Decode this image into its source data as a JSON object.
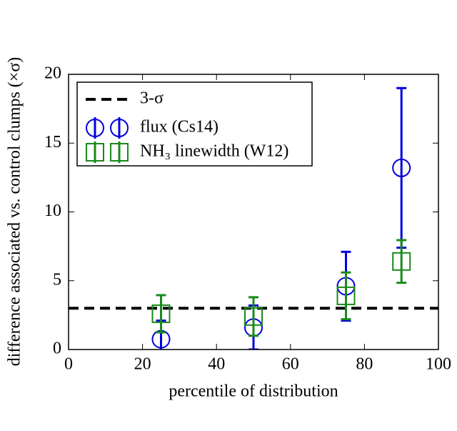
{
  "chart_data": {
    "type": "scatter",
    "xlabel": "percentile of distribution",
    "ylabel": "difference associated vs. control clumps (×σ)",
    "xlim": [
      0,
      100
    ],
    "xticks": [
      0,
      20,
      40,
      60,
      80,
      100
    ],
    "ylim": [
      0,
      20
    ],
    "yticks": [
      0,
      5,
      10,
      15,
      20
    ],
    "hlines": [
      {
        "name": "3-σ",
        "value": 3,
        "color": "#000000"
      }
    ],
    "series": [
      {
        "name": "flux (Cs14)",
        "color": "#0000dd",
        "marker": "circle",
        "x": [
          25,
          50,
          75,
          90
        ],
        "values": [
          0.75,
          1.6,
          4.6,
          13.2
        ],
        "errors": [
          1.35,
          1.6,
          2.5,
          5.8
        ]
      },
      {
        "name": "NH₃ linewidth (W12)",
        "color": "#1a8a1a",
        "marker": "square",
        "x": [
          25,
          50,
          75,
          90
        ],
        "values": [
          2.6,
          2.4,
          3.9,
          6.4
        ],
        "errors": [
          1.35,
          1.4,
          1.7,
          1.55
        ]
      }
    ],
    "legend": "upper left"
  }
}
